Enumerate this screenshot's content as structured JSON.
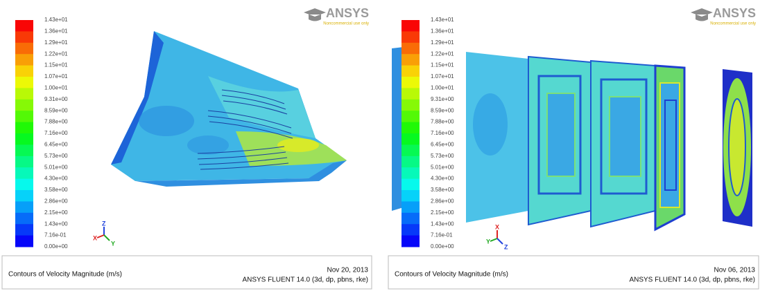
{
  "panels": [
    {
      "colorbar_labels": [
        "1.43e+01",
        "1.36e+01",
        "1.29e+01",
        "1.22e+01",
        "1.15e+01",
        "1.07e+01",
        "1.00e+01",
        "9.31e+00",
        "8.59e+00",
        "7.88e+00",
        "7.16e+00",
        "6.45e+00",
        "5.73e+00",
        "5.01e+00",
        "4.30e+00",
        "3.58e+00",
        "2.86e+00",
        "2.15e+00",
        "1.43e+00",
        "7.16e-01",
        "0.00e+00"
      ],
      "logo": "ANSYS",
      "logo_note": "Noncommercial use only",
      "axes": [
        "Z",
        "X",
        "Y"
      ],
      "caption": "Contours of Velocity Magnitude (m/s)",
      "date": "Nov 20, 2013",
      "software": "ANSYS FLUENT 14.0 (3d, dp, pbns, rke)"
    },
    {
      "colorbar_labels": [
        "1.43e+01",
        "1.36e+01",
        "1.29e+01",
        "1.22e+01",
        "1.15e+01",
        "1.07e+01",
        "1.00e+01",
        "9.31e+00",
        "8.59e+00",
        "7.88e+00",
        "7.16e+00",
        "6.45e+00",
        "5.73e+00",
        "5.01e+00",
        "4.30e+00",
        "3.58e+00",
        "2.86e+00",
        "2.15e+00",
        "1.43e+00",
        "7.16e-01",
        "0.00e+00"
      ],
      "logo": "ANSYS",
      "logo_note": "Noncommercial use only",
      "axes": [
        "X",
        "Y",
        "Z"
      ],
      "caption": "Contours of Velocity Magnitude (m/s)",
      "date": "Nov 06, 2013",
      "software": "ANSYS FLUENT 14.0 (3d, dp, pbns, rke)"
    }
  ]
}
